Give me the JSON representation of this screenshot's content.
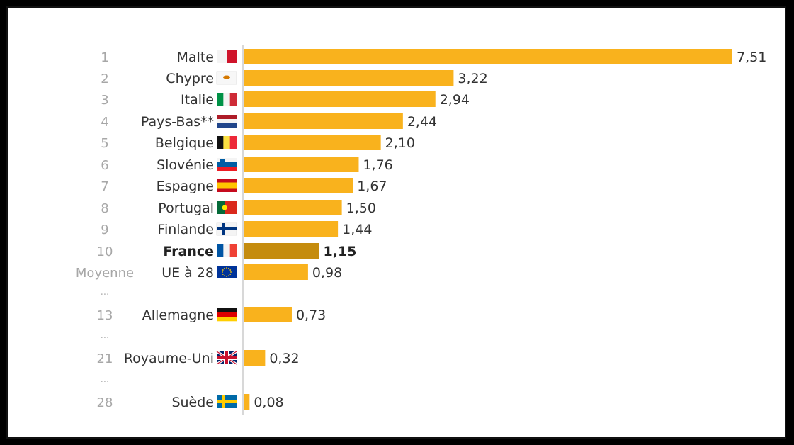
{
  "chart_data": {
    "type": "bar",
    "orientation": "horizontal",
    "title": "",
    "xlabel": "",
    "ylabel": "",
    "grid": false,
    "legend": "none",
    "bar_color": "#f9b21d",
    "highlight_color": "#c58c0e",
    "xlim": [
      0,
      7.51
    ],
    "rows": [
      {
        "rank": "1",
        "country": "Malte",
        "value": 7.51,
        "label": "7,51",
        "flag": "malta-flag"
      },
      {
        "rank": "2",
        "country": "Chypre",
        "value": 3.22,
        "label": "3,22",
        "flag": "cyprus-flag"
      },
      {
        "rank": "3",
        "country": "Italie",
        "value": 2.94,
        "label": "2,94",
        "flag": "italy-flag"
      },
      {
        "rank": "4",
        "country": "Pays-Bas**",
        "value": 2.44,
        "label": "2,44",
        "flag": "netherlands-flag"
      },
      {
        "rank": "5",
        "country": "Belgique",
        "value": 2.1,
        "label": "2,10",
        "flag": "belgium-flag"
      },
      {
        "rank": "6",
        "country": "Slovénie",
        "value": 1.76,
        "label": "1,76",
        "flag": "slovenia-flag"
      },
      {
        "rank": "7",
        "country": "Espagne",
        "value": 1.67,
        "label": "1,67",
        "flag": "spain-flag"
      },
      {
        "rank": "8",
        "country": "Portugal",
        "value": 1.5,
        "label": "1,50",
        "flag": "portugal-flag"
      },
      {
        "rank": "9",
        "country": "Finlande",
        "value": 1.44,
        "label": "1,44",
        "flag": "finland-flag"
      },
      {
        "rank": "10",
        "country": "France",
        "value": 1.15,
        "label": "1,15",
        "flag": "france-flag",
        "highlight": true
      },
      {
        "rank": "Moyenne",
        "country": "UE à 28",
        "value": 0.98,
        "label": "0,98",
        "flag": "eu-flag"
      },
      {
        "rank": "13",
        "country": "Allemagne",
        "value": 0.73,
        "label": "0,73",
        "flag": "germany-flag",
        "dots_before": "..."
      },
      {
        "rank": "21",
        "country": "Royaume-Uni",
        "value": 0.32,
        "label": "0,32",
        "flag": "uk-flag",
        "dots_before": "..."
      },
      {
        "rank": "28",
        "country": "Suède",
        "value": 0.08,
        "label": "0,08",
        "flag": "sweden-flag",
        "dots_before": "..."
      }
    ]
  }
}
